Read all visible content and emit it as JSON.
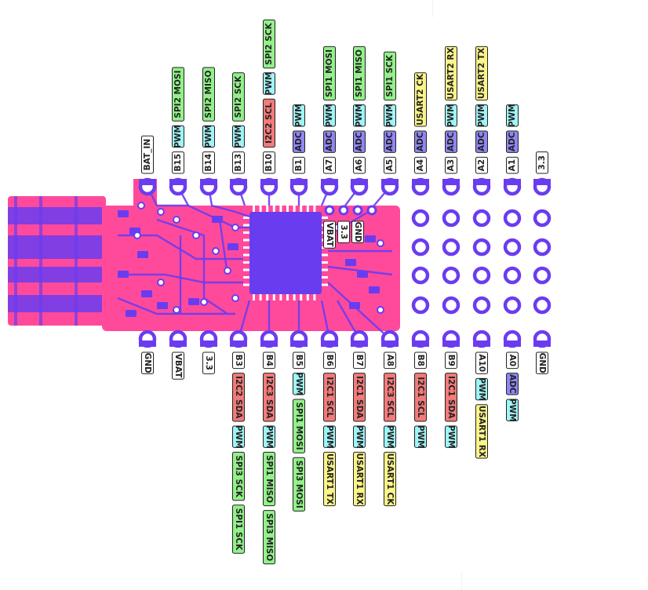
{
  "colors": {
    "board": "#ff4a9c",
    "pad": "#6a3cf0",
    "pin_power": "#ffffff",
    "tag_adc": "#8f86f2",
    "tag_pwm": "#9ff4f6",
    "tag_spi": "#93f08a",
    "tag_i2c": "#f27a7a",
    "tag_usart": "#fbf48a"
  },
  "top_pins": [
    {
      "pin": "BAT_IN",
      "tags": []
    },
    {
      "pin": "B15",
      "tags": [
        {
          "text": "PWM",
          "kind": "pwm"
        },
        {
          "text": "SPI2 MOSI",
          "kind": "spi"
        }
      ]
    },
    {
      "pin": "B14",
      "tags": [
        {
          "text": "PWM",
          "kind": "pwm"
        },
        {
          "text": "SPI2 MISO",
          "kind": "spi"
        }
      ]
    },
    {
      "pin": "B13",
      "tags": [
        {
          "text": "PWM",
          "kind": "pwm"
        },
        {
          "text": "SPI2 SCK",
          "kind": "spi"
        }
      ]
    },
    {
      "pin": "B10",
      "tags": [
        {
          "text": "I2C2 SCL",
          "kind": "i2c"
        },
        {
          "text": "PWM",
          "kind": "pwm"
        },
        {
          "text": "SPI2 SCK",
          "kind": "spi"
        }
      ]
    },
    {
      "pin": "B1",
      "tags": [
        {
          "text": "ADC",
          "kind": "adc"
        },
        {
          "text": "PWM",
          "kind": "pwm"
        }
      ]
    },
    {
      "pin": "A7",
      "tags": [
        {
          "text": "ADC",
          "kind": "adc"
        },
        {
          "text": "PWM",
          "kind": "pwm"
        },
        {
          "text": "SPI1 MOSI",
          "kind": "spi"
        }
      ]
    },
    {
      "pin": "A6",
      "tags": [
        {
          "text": "ADC",
          "kind": "adc"
        },
        {
          "text": "PWM",
          "kind": "pwm"
        },
        {
          "text": "SPI1 MISO",
          "kind": "spi"
        }
      ]
    },
    {
      "pin": "A5",
      "tags": [
        {
          "text": "ADC",
          "kind": "adc"
        },
        {
          "text": "PWM",
          "kind": "pwm"
        },
        {
          "text": "SPI1 SCK",
          "kind": "spi"
        }
      ]
    },
    {
      "pin": "A4",
      "tags": [
        {
          "text": "ADC",
          "kind": "adc"
        },
        {
          "text": "USART2 CK",
          "kind": "usart"
        }
      ]
    },
    {
      "pin": "A3",
      "tags": [
        {
          "text": "ADC",
          "kind": "adc"
        },
        {
          "text": "PWM",
          "kind": "pwm"
        },
        {
          "text": "USART2 RX",
          "kind": "usart"
        }
      ]
    },
    {
      "pin": "A2",
      "tags": [
        {
          "text": "ADC",
          "kind": "adc"
        },
        {
          "text": "PWM",
          "kind": "pwm"
        },
        {
          "text": "USART2 TX",
          "kind": "usart"
        }
      ]
    },
    {
      "pin": "A1",
      "tags": [
        {
          "text": "ADC",
          "kind": "adc"
        },
        {
          "text": "PWM",
          "kind": "pwm"
        }
      ]
    },
    {
      "pin": "3.3",
      "tags": []
    }
  ],
  "bottom_pins": [
    {
      "pin": "GND",
      "tags": []
    },
    {
      "pin": "VBAT",
      "tags": []
    },
    {
      "pin": "3.3",
      "tags": []
    },
    {
      "pin": "B3",
      "tags": [
        {
          "text": "I2C2 SDA",
          "kind": "i2c"
        },
        {
          "text": "PWM",
          "kind": "pwm"
        },
        {
          "text": "SPI3 SCK",
          "kind": "spi"
        },
        {
          "text": "SPI1 SCK",
          "kind": "spi"
        }
      ]
    },
    {
      "pin": "B4",
      "tags": [
        {
          "text": "I2C3 SDA",
          "kind": "i2c"
        },
        {
          "text": "PWM",
          "kind": "pwm"
        },
        {
          "text": "SPI1 MISO",
          "kind": "spi"
        },
        {
          "text": "SPI3 MISO",
          "kind": "spi"
        }
      ]
    },
    {
      "pin": "B5",
      "tags": [
        {
          "text": "PWM",
          "kind": "pwm"
        },
        {
          "text": "SPI1 MOSI",
          "kind": "spi"
        },
        {
          "text": "SPI3 MOSI",
          "kind": "spi"
        }
      ]
    },
    {
      "pin": "B6",
      "tags": [
        {
          "text": "I2C1 SCL",
          "kind": "i2c"
        },
        {
          "text": "PWM",
          "kind": "pwm"
        },
        {
          "text": "USART1 TX",
          "kind": "usart"
        }
      ]
    },
    {
      "pin": "B7",
      "tags": [
        {
          "text": "I2C1 SDA",
          "kind": "i2c"
        },
        {
          "text": "PWM",
          "kind": "pwm"
        },
        {
          "text": "USART1 RX",
          "kind": "usart"
        }
      ]
    },
    {
      "pin": "A8",
      "tags": [
        {
          "text": "I2C3 SCL",
          "kind": "i2c"
        },
        {
          "text": "PWM",
          "kind": "pwm"
        },
        {
          "text": "USART1 CK",
          "kind": "usart"
        }
      ]
    },
    {
      "pin": "B8",
      "tags": [
        {
          "text": "I2C1 SCL",
          "kind": "i2c"
        },
        {
          "text": "PWM",
          "kind": "pwm"
        }
      ]
    },
    {
      "pin": "B9",
      "tags": [
        {
          "text": "I2C1 SDA",
          "kind": "i2c"
        },
        {
          "text": "PWM",
          "kind": "pwm"
        }
      ]
    },
    {
      "pin": "A10",
      "tags": [
        {
          "text": "PWM",
          "kind": "pwm"
        },
        {
          "text": "USART1 RX",
          "kind": "usart"
        }
      ]
    },
    {
      "pin": "A0",
      "tags": [
        {
          "text": "ADC",
          "kind": "adc"
        },
        {
          "text": "PWM",
          "kind": "pwm"
        }
      ]
    },
    {
      "pin": "GND",
      "tags": []
    }
  ],
  "inner_pins": [
    "VBAT",
    "3.3",
    "GND"
  ]
}
